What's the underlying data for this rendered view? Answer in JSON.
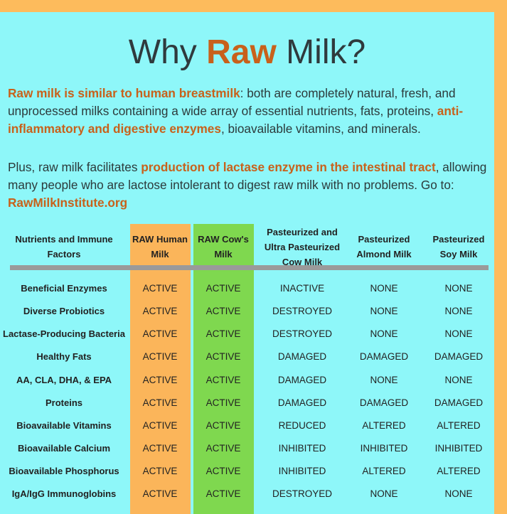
{
  "title": {
    "pre": "Why ",
    "accent": "Raw",
    "post": " Milk?"
  },
  "paragraph1": {
    "hl1": "Raw milk is similar to human breastmilk",
    "t1": ": both are completely natural, fresh, and unprocessed milks containing a wide array of essential nutrients, fats, proteins, ",
    "hl2": "anti-inflammatory and digestive enzymes",
    "t2": ", bioavailable vitamins, and minerals."
  },
  "paragraph2": {
    "t1": "Plus, raw milk facilitates ",
    "hl1": "production of lactase enzyme in the intestinal tract",
    "t2": ", allowing many people who are lactose intolerant to digest raw milk with no problems. Go to: ",
    "link": "RawMilkInstitute.org"
  },
  "table": {
    "headers": [
      "Nutrients and Immune Factors",
      "RAW Human Milk",
      "RAW  Cow's Milk",
      "Pasteurized and Ultra Pasteurized Cow Milk",
      "Pasteurized Almond Milk",
      "Pasteurized Soy Milk"
    ],
    "rows": [
      [
        "Beneficial Enzymes",
        "ACTIVE",
        "ACTIVE",
        "INACTIVE",
        "NONE",
        "NONE"
      ],
      [
        "Diverse Probiotics",
        "ACTIVE",
        "ACTIVE",
        "DESTROYED",
        "NONE",
        "NONE"
      ],
      [
        "Lactase-Producing Bacteria",
        "ACTIVE",
        "ACTIVE",
        "DESTROYED",
        "NONE",
        "NONE"
      ],
      [
        "Healthy Fats",
        "ACTIVE",
        "ACTIVE",
        "DAMAGED",
        "DAMAGED",
        "DAMAGED"
      ],
      [
        "AA, CLA, DHA, & EPA",
        "ACTIVE",
        "ACTIVE",
        "DAMAGED",
        "NONE",
        "NONE"
      ],
      [
        "Proteins",
        "ACTIVE",
        "ACTIVE",
        "DAMAGED",
        "DAMAGED",
        "DAMAGED"
      ],
      [
        "Bioavailable Vitamins",
        "ACTIVE",
        "ACTIVE",
        "REDUCED",
        "ALTERED",
        "ALTERED"
      ],
      [
        "Bioavailable Calcium",
        "ACTIVE",
        "ACTIVE",
        "INHIBITED",
        "INHIBITED",
        "INHIBITED"
      ],
      [
        "Bioavailable Phosphorus",
        "ACTIVE",
        "ACTIVE",
        "INHIBITED",
        "ALTERED",
        "ALTERED"
      ],
      [
        "IgA/IgG Immunoglobins",
        "ACTIVE",
        "ACTIVE",
        "DESTROYED",
        "NONE",
        "NONE"
      ]
    ]
  },
  "colors": {
    "background": "#8ef7f9",
    "border": "#fdbb5c",
    "accent": "#c8611b",
    "human_column": "#fbb55a",
    "cow_column": "#7fd84f",
    "rule": "#9a9a9a"
  }
}
